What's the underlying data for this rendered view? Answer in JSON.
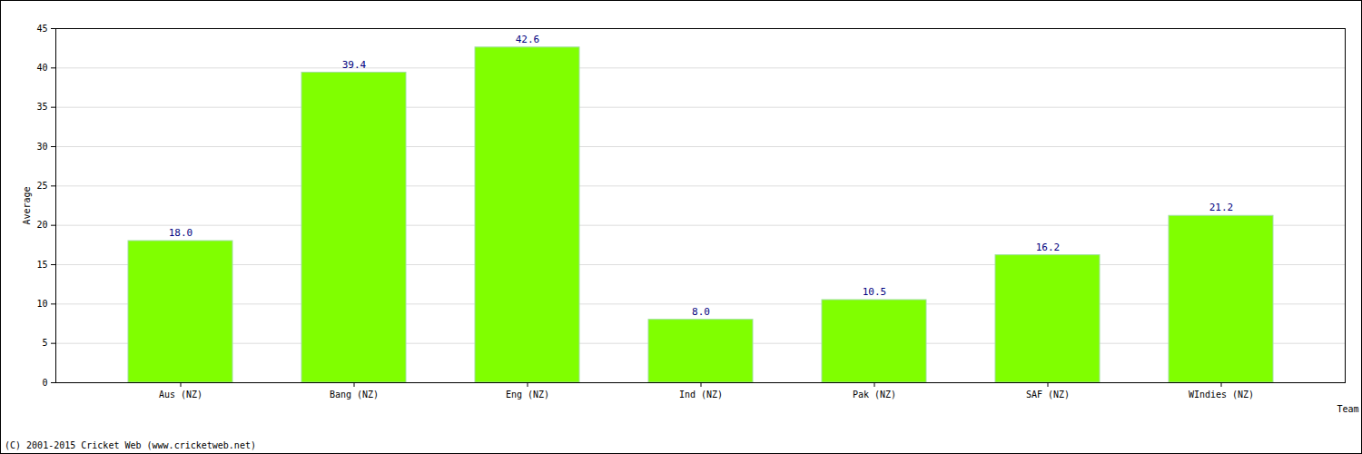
{
  "chart_data": {
    "type": "bar",
    "categories": [
      "Aus (NZ)",
      "Bang (NZ)",
      "Eng (NZ)",
      "Ind (NZ)",
      "Pak (NZ)",
      "SAF (NZ)",
      "WIndies (NZ)"
    ],
    "values": [
      18.0,
      39.4,
      42.6,
      8.0,
      10.5,
      16.2,
      21.2
    ],
    "value_labels": [
      "18.0",
      "39.4",
      "42.6",
      "8.0",
      "10.5",
      "16.2",
      "21.2"
    ],
    "data_labels": true,
    "color": "#80ff00",
    "x_label": "Team",
    "y_label": "Average",
    "ylim": [
      0,
      45
    ],
    "yticks": [
      0,
      5,
      10,
      15,
      20,
      25,
      30,
      35,
      40,
      45
    ],
    "grid": true,
    "caption": "(C) 2001-2015 Cricket Web (www.cricketweb.net)"
  }
}
